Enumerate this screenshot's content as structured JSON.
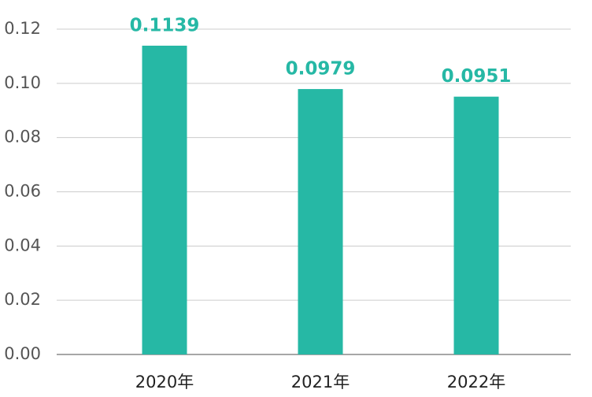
{
  "chart_data": {
    "type": "bar",
    "categories": [
      "2020年",
      "2021年",
      "2022年"
    ],
    "values": [
      0.1139,
      0.0979,
      0.0951
    ],
    "color": "#26b8a5",
    "ylim": [
      0,
      0.12
    ],
    "yticks": [
      {
        "value": 0,
        "label": "0.00"
      },
      {
        "value": 0.02,
        "label": "0.02"
      },
      {
        "value": 0.04,
        "label": "0.04"
      },
      {
        "value": 0.06,
        "label": "0.06"
      },
      {
        "value": 0.08,
        "label": "0.08"
      },
      {
        "value": 0.1,
        "label": "0.10"
      },
      {
        "value": 0.12,
        "label": "0.12"
      }
    ],
    "grid": true
  }
}
